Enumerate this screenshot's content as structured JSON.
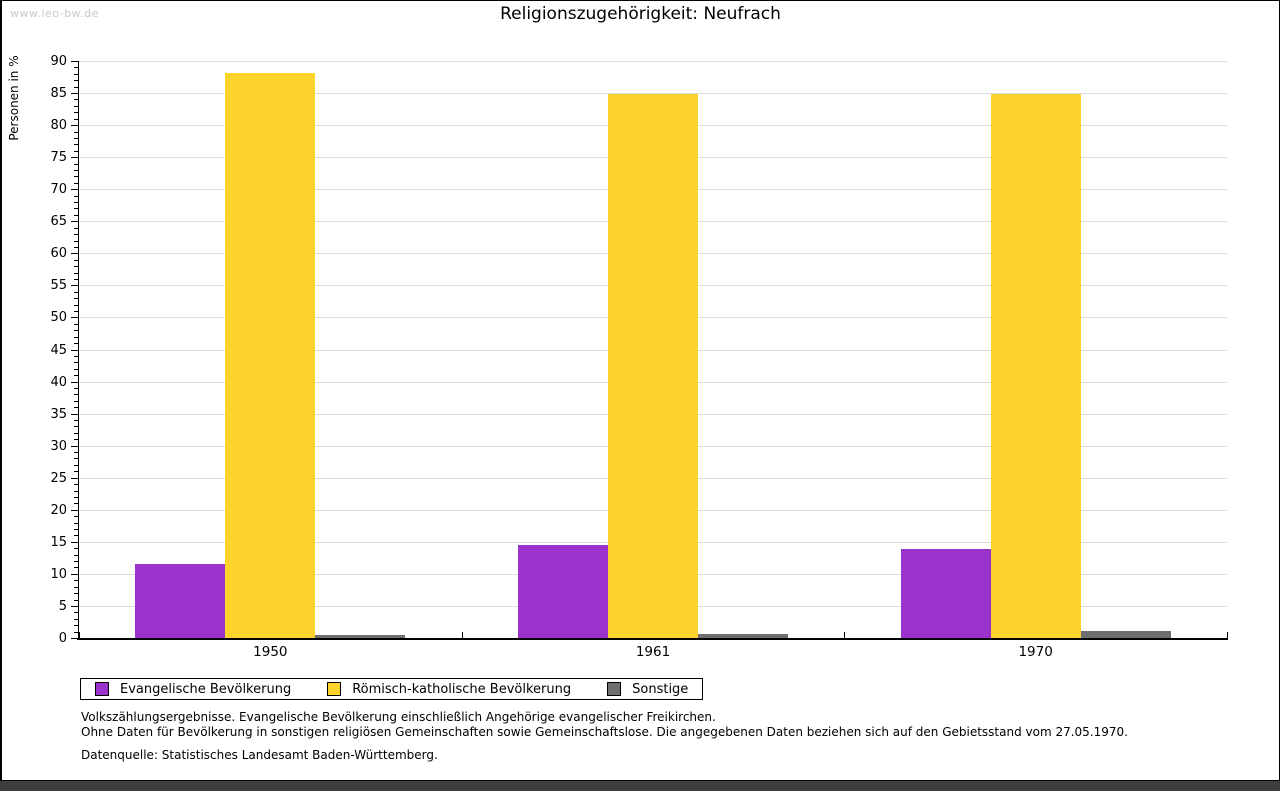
{
  "page": {
    "watermark": "www.leo-bw.de"
  },
  "chart_data": {
    "type": "bar",
    "title": "Religionszugehörigkeit: Neufrach",
    "xlabel": "",
    "ylabel": "Personen in %",
    "categories": [
      "1950",
      "1961",
      "1970"
    ],
    "series": [
      {
        "name": "Evangelische Bevölkerung",
        "color": "#9933CC",
        "values": [
          11.5,
          14.5,
          13.9
        ]
      },
      {
        "name": "Römisch-katholische Bevölkerung",
        "color": "#FCD32C",
        "values": [
          88.2,
          84.9,
          84.9
        ]
      },
      {
        "name": "Sonstige",
        "color": "#6E6E6E",
        "values": [
          0.4,
          0.7,
          1.1
        ]
      }
    ],
    "ylim": [
      0,
      90
    ],
    "yticks": [
      0,
      5,
      10,
      15,
      20,
      25,
      30,
      35,
      40,
      45,
      50,
      55,
      60,
      65,
      70,
      75,
      80,
      85,
      90
    ],
    "yminor_step": 1,
    "grid": true,
    "legend_position": "bottom"
  },
  "footnotes": {
    "line1": "Volkszählungsergebnisse. Evangelische Bevölkerung einschließlich Angehörige evangelischer Freikirchen.",
    "line2": "Ohne Daten für Bevölkerung in sonstigen religiösen Gemeinschaften sowie Gemeinschaftslose. Die angegebenen Daten beziehen sich auf den Gebietsstand vom 27.05.1970.",
    "source": "Datenquelle: Statistisches Landesamt Baden-Württemberg."
  }
}
